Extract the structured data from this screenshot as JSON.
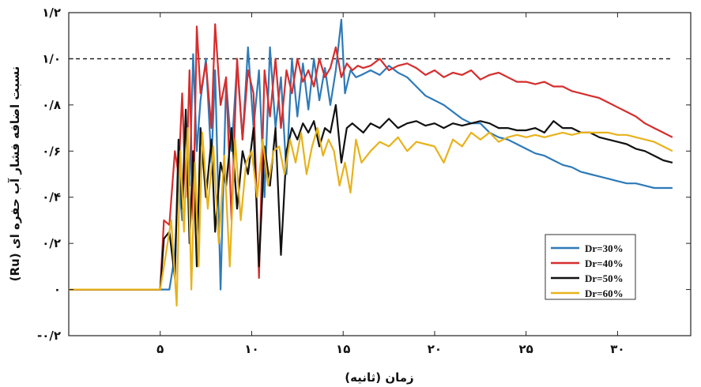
{
  "chart_data": {
    "type": "line",
    "xlabel": "زمان (ثانیه)",
    "ylabel": "نسبت اضافه فشار آب حفره ای (Ru)",
    "xlim": [
      0,
      34
    ],
    "ylim": [
      -0.2,
      1.2
    ],
    "xticks": [
      5,
      10,
      15,
      20,
      25,
      30
    ],
    "xtick_labels": [
      "۵",
      "۱۰",
      "۱۵",
      "۲۰",
      "۲۵",
      "۳۰"
    ],
    "yticks": [
      -0.2,
      0,
      0.2,
      0.4,
      0.6,
      0.8,
      1.0,
      1.2
    ],
    "ytick_labels": [
      "-۰/۲",
      "۰",
      "۰/۲",
      "۰/۴",
      "۰/۶",
      "۰/۸",
      "۱/۰",
      "۱/۲"
    ],
    "reference_line": {
      "y": 1.0,
      "style": "dashed"
    },
    "grid": false,
    "legend_position": "lower-right",
    "series": [
      {
        "name": "Dr=30%",
        "color": "#2e7ab8",
        "x": [
          0,
          5.0,
          5.5,
          5.8,
          6.0,
          6.2,
          6.4,
          6.6,
          6.8,
          7.0,
          7.2,
          7.5,
          7.8,
          8.0,
          8.3,
          8.6,
          8.9,
          9.2,
          9.5,
          9.8,
          10.1,
          10.4,
          10.7,
          11.0,
          11.3,
          11.6,
          11.9,
          12.2,
          12.5,
          12.8,
          13.1,
          13.4,
          13.7,
          14.0,
          14.3,
          14.6,
          14.9,
          15.1,
          15.4,
          15.7,
          16.0,
          16.5,
          17.0,
          17.5,
          18.0,
          18.5,
          19.0,
          19.5,
          20.0,
          20.5,
          21.0,
          21.5,
          22.0,
          22.5,
          23.0,
          23.5,
          24.0,
          24.5,
          25.0,
          25.5,
          26.0,
          26.5,
          27.0,
          27.5,
          28.0,
          28.5,
          29.0,
          29.5,
          30.0,
          30.5,
          31.0,
          31.5,
          32.0,
          32.5,
          33.0
        ],
        "y": [
          0,
          0,
          0,
          0.15,
          0.5,
          0.3,
          0.75,
          0.45,
          1.02,
          0.6,
          0.82,
          1.0,
          0.55,
          0.95,
          0.0,
          0.9,
          0.6,
          0.98,
          0.65,
          1.05,
          0.7,
          0.95,
          0.4,
          1.05,
          0.7,
          0.92,
          0.5,
          1.0,
          0.75,
          0.98,
          0.78,
          1.0,
          0.82,
          0.96,
          0.8,
          0.95,
          1.17,
          0.85,
          0.95,
          0.92,
          0.93,
          0.95,
          0.93,
          0.97,
          0.94,
          0.92,
          0.88,
          0.84,
          0.82,
          0.8,
          0.77,
          0.74,
          0.72,
          0.72,
          0.68,
          0.66,
          0.65,
          0.63,
          0.61,
          0.59,
          0.58,
          0.56,
          0.54,
          0.53,
          0.51,
          0.5,
          0.49,
          0.48,
          0.47,
          0.46,
          0.46,
          0.45,
          0.44,
          0.44,
          0.44
        ]
      },
      {
        "name": "Dr=40%",
        "color": "#d62d2d",
        "x": [
          0,
          5.0,
          5.2,
          5.5,
          5.8,
          6.0,
          6.2,
          6.4,
          6.6,
          6.8,
          7.0,
          7.2,
          7.5,
          7.8,
          8.0,
          8.3,
          8.6,
          8.9,
          9.2,
          9.5,
          9.8,
          10.1,
          10.4,
          10.7,
          11.0,
          11.3,
          11.6,
          11.9,
          12.2,
          12.5,
          12.8,
          13.1,
          13.4,
          13.7,
          14.0,
          14.3,
          14.6,
          14.9,
          15.2,
          15.5,
          15.8,
          16.1,
          16.5,
          17.0,
          17.5,
          18.0,
          18.5,
          19.0,
          19.5,
          20.0,
          20.5,
          21.0,
          21.5,
          22.0,
          22.5,
          23.0,
          23.5,
          24.0,
          24.5,
          25.0,
          25.5,
          26.0,
          26.5,
          27.0,
          27.5,
          28.0,
          28.5,
          29.0,
          29.5,
          30.0,
          30.5,
          31.0,
          31.5,
          32.0,
          32.5,
          33.0
        ],
        "y": [
          0,
          0,
          0.3,
          0.28,
          0.6,
          0.5,
          0.85,
          0.4,
          0.95,
          0.3,
          1.14,
          0.85,
          0.98,
          0.7,
          1.15,
          0.8,
          0.92,
          0.3,
          1.0,
          0.65,
          0.95,
          0.85,
          0.05,
          0.95,
          0.75,
          1.0,
          0.7,
          0.95,
          0.85,
          1.0,
          0.9,
          0.95,
          0.88,
          1.0,
          0.92,
          0.96,
          1.05,
          0.92,
          0.98,
          0.95,
          0.97,
          0.96,
          0.97,
          1.0,
          0.95,
          0.97,
          0.98,
          0.96,
          0.93,
          0.95,
          0.92,
          0.94,
          0.93,
          0.95,
          0.91,
          0.93,
          0.94,
          0.92,
          0.9,
          0.9,
          0.89,
          0.9,
          0.88,
          0.88,
          0.86,
          0.85,
          0.84,
          0.83,
          0.81,
          0.79,
          0.77,
          0.75,
          0.72,
          0.7,
          0.68,
          0.66
        ]
      },
      {
        "name": "Dr=50%",
        "color": "#111111",
        "x": [
          0,
          5.0,
          5.2,
          5.5,
          5.8,
          6.0,
          6.2,
          6.4,
          6.6,
          6.8,
          7.0,
          7.2,
          7.5,
          7.8,
          8.0,
          8.3,
          8.6,
          8.9,
          9.2,
          9.5,
          9.8,
          10.1,
          10.4,
          10.7,
          11.0,
          11.3,
          11.6,
          11.9,
          12.2,
          12.5,
          12.8,
          13.1,
          13.4,
          13.7,
          14.0,
          14.3,
          14.6,
          14.9,
          15.2,
          15.5,
          15.8,
          16.1,
          16.5,
          17.0,
          17.5,
          18.0,
          18.5,
          19.0,
          19.5,
          20.0,
          20.5,
          21.0,
          21.5,
          22.0,
          22.5,
          23.0,
          23.5,
          24.0,
          24.5,
          25.0,
          25.5,
          26.0,
          26.5,
          27.0,
          27.5,
          28.0,
          28.5,
          29.0,
          29.5,
          30.0,
          30.5,
          31.0,
          31.5,
          32.0,
          32.5,
          33.0
        ],
        "y": [
          0,
          0,
          0.22,
          0.25,
          0.05,
          0.65,
          0.35,
          0.78,
          0.2,
          0.6,
          0.1,
          0.7,
          0.4,
          0.65,
          0.25,
          0.55,
          0.45,
          0.7,
          0.35,
          0.6,
          0.5,
          0.7,
          0.1,
          0.62,
          0.45,
          0.7,
          0.15,
          0.6,
          0.7,
          0.65,
          0.72,
          0.68,
          0.73,
          0.62,
          0.7,
          0.68,
          0.8,
          0.55,
          0.7,
          0.72,
          0.7,
          0.68,
          0.72,
          0.7,
          0.74,
          0.7,
          0.72,
          0.73,
          0.71,
          0.72,
          0.7,
          0.72,
          0.71,
          0.72,
          0.73,
          0.72,
          0.7,
          0.7,
          0.69,
          0.69,
          0.7,
          0.68,
          0.73,
          0.7,
          0.7,
          0.68,
          0.68,
          0.66,
          0.65,
          0.64,
          0.63,
          0.61,
          0.6,
          0.58,
          0.56,
          0.55
        ]
      },
      {
        "name": "Dr=60%",
        "color": "#e8b21c",
        "x": [
          0,
          5.0,
          5.3,
          5.6,
          5.9,
          6.1,
          6.3,
          6.5,
          6.7,
          6.9,
          7.1,
          7.3,
          7.6,
          7.9,
          8.2,
          8.5,
          8.8,
          9.1,
          9.4,
          9.7,
          10.0,
          10.3,
          10.6,
          10.9,
          11.2,
          11.5,
          11.8,
          12.1,
          12.4,
          12.7,
          13.0,
          13.3,
          13.6,
          13.9,
          14.2,
          14.5,
          14.8,
          15.1,
          15.4,
          15.7,
          16.0,
          16.5,
          17.0,
          17.5,
          18.0,
          18.5,
          19.0,
          19.5,
          20.0,
          20.5,
          21.0,
          21.5,
          22.0,
          22.5,
          23.0,
          23.5,
          24.0,
          24.5,
          25.0,
          25.5,
          26.0,
          26.5,
          27.0,
          27.5,
          28.0,
          28.5,
          29.0,
          29.5,
          30.0,
          30.5,
          31.0,
          31.5,
          32.0,
          32.5,
          33.0
        ],
        "y": [
          0,
          0,
          0.15,
          0.3,
          -0.07,
          0.6,
          0.25,
          0.7,
          0.0,
          0.55,
          0.1,
          0.68,
          0.35,
          0.62,
          0.2,
          0.58,
          0.1,
          0.65,
          0.3,
          0.55,
          0.6,
          0.4,
          0.65,
          0.45,
          0.6,
          0.62,
          0.5,
          0.65,
          0.55,
          0.68,
          0.5,
          0.62,
          0.7,
          0.58,
          0.65,
          0.6,
          0.45,
          0.55,
          0.42,
          0.65,
          0.55,
          0.6,
          0.64,
          0.62,
          0.66,
          0.6,
          0.64,
          0.63,
          0.62,
          0.55,
          0.65,
          0.62,
          0.68,
          0.65,
          0.68,
          0.64,
          0.66,
          0.67,
          0.66,
          0.67,
          0.66,
          0.67,
          0.68,
          0.67,
          0.68,
          0.68,
          0.68,
          0.68,
          0.67,
          0.67,
          0.66,
          0.65,
          0.64,
          0.62,
          0.6
        ]
      }
    ]
  }
}
